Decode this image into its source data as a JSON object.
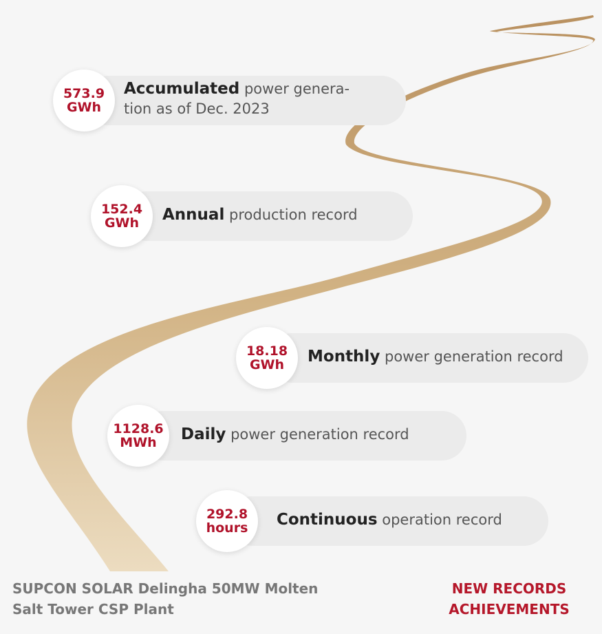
{
  "records": [
    {
      "value": "573.9",
      "unit": "GWh",
      "bold": "Accumulated",
      "rest": [
        "power genera-",
        "tion as of Dec. 2023"
      ]
    },
    {
      "value": "152.4",
      "unit": "GWh",
      "bold": "Annual",
      "rest": [
        "production record"
      ]
    },
    {
      "value": "18.18",
      "unit": "GWh",
      "bold": "Monthly",
      "rest": [
        "power generation record"
      ]
    },
    {
      "value": "1128.6",
      "unit": "MWh",
      "bold": "Daily",
      "rest": [
        "power generation record"
      ]
    },
    {
      "value": "292.8",
      "unit": "hours",
      "bold": "Continuous",
      "rest": [
        "operation record"
      ]
    }
  ],
  "footer": {
    "plant": [
      "SUPCON SOLAR Delingha 50MW Molten",
      "Salt Tower CSP Plant"
    ],
    "tag": [
      "NEW RECORDS",
      "ACHIEVEMENTS"
    ]
  }
}
